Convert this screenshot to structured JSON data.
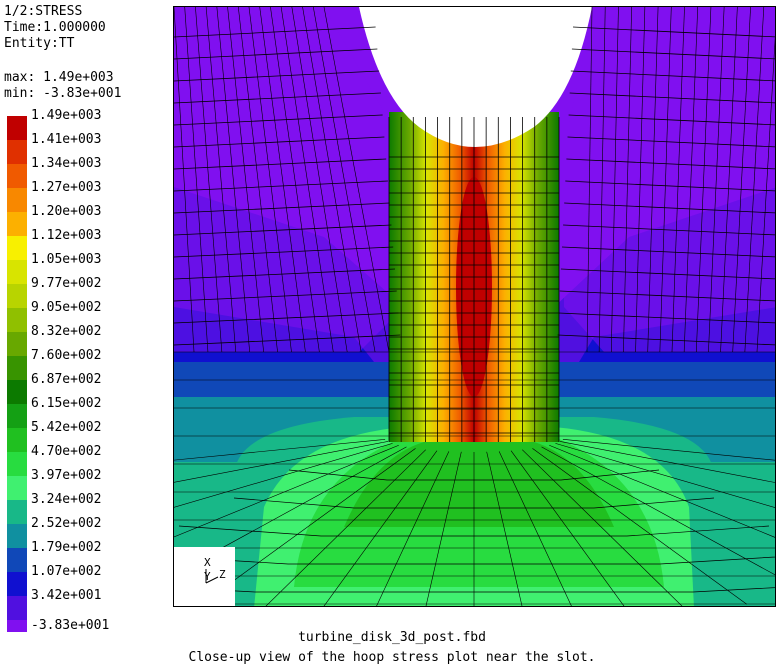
{
  "header": {
    "title": "1/2:STRESS",
    "time": "Time:1.000000",
    "entity": "Entity:TT",
    "max": "max: 1.49e+003",
    "min": "min: -3.83e+001"
  },
  "legend": {
    "entries": [
      {
        "label": "1.49e+003",
        "color": "#c00000"
      },
      {
        "label": "1.41e+003",
        "color": "#e03000"
      },
      {
        "label": "1.34e+003",
        "color": "#f05a00"
      },
      {
        "label": "1.27e+003",
        "color": "#f88800"
      },
      {
        "label": "1.20e+003",
        "color": "#fcb000"
      },
      {
        "label": "1.12e+003",
        "color": "#f8f000"
      },
      {
        "label": "1.05e+003",
        "color": "#d8e400"
      },
      {
        "label": "9.77e+002",
        "color": "#b8d400"
      },
      {
        "label": "9.05e+002",
        "color": "#90c000"
      },
      {
        "label": "8.32e+002",
        "color": "#68a800"
      },
      {
        "label": "7.60e+002",
        "color": "#389400"
      },
      {
        "label": "6.87e+002",
        "color": "#0c7a00"
      },
      {
        "label": "6.15e+002",
        "color": "#14a014"
      },
      {
        "label": "5.42e+002",
        "color": "#20c020"
      },
      {
        "label": "4.70e+002",
        "color": "#28dc40"
      },
      {
        "label": "3.97e+002",
        "color": "#40f070"
      },
      {
        "label": "3.24e+002",
        "color": "#18b888"
      },
      {
        "label": "2.52e+002",
        "color": "#1090a0"
      },
      {
        "label": "1.79e+002",
        "color": "#1048b8"
      },
      {
        "label": "1.07e+002",
        "color": "#1010d0"
      },
      {
        "label": "3.42e+001",
        "color": "#5010e0"
      },
      {
        "label": "-3.83e+001",
        "color": "#8010f0"
      }
    ]
  },
  "triad": {
    "x_label": "X",
    "y_label": "Y",
    "z_label": "Z"
  },
  "footer": {
    "filename": "turbine_disk_3d_post.fbd",
    "caption": "Close-up view of the hoop stress plot near the slot."
  }
}
